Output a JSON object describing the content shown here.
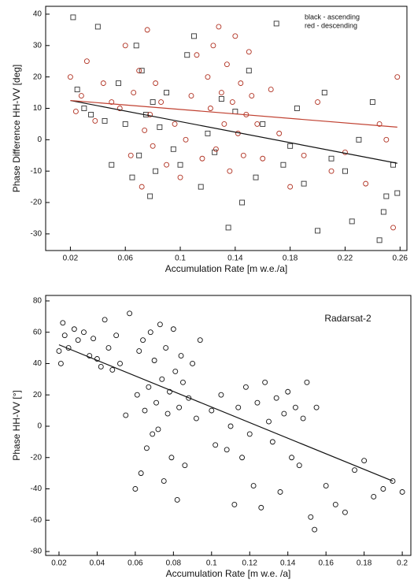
{
  "chart_data": [
    {
      "type": "scatter",
      "xlabel": "Accumulation Rate [m w.e./a]",
      "ylabel": "Phase Difference HH-VV [deg]",
      "xlim": [
        0.002,
        0.265
      ],
      "ylim": [
        -35.3,
        42.5
      ],
      "xticks": [
        0.02,
        0.06,
        0.1,
        0.14,
        0.18,
        0.22,
        0.26
      ],
      "yticks": [
        -30,
        -20,
        -10,
        0,
        10,
        20,
        30,
        40
      ],
      "legend": "upper right",
      "series": [
        {
          "name": "black - ascending",
          "color": "#333333",
          "marker": "square",
          "x": [
            0.022,
            0.025,
            0.03,
            0.035,
            0.04,
            0.045,
            0.05,
            0.055,
            0.06,
            0.065,
            0.068,
            0.07,
            0.072,
            0.075,
            0.078,
            0.08,
            0.082,
            0.085,
            0.09,
            0.095,
            0.1,
            0.105,
            0.11,
            0.115,
            0.12,
            0.125,
            0.13,
            0.135,
            0.14,
            0.145,
            0.15,
            0.155,
            0.16,
            0.17,
            0.175,
            0.18,
            0.185,
            0.19,
            0.2,
            0.205,
            0.21,
            0.22,
            0.225,
            0.23,
            0.24,
            0.245,
            0.248,
            0.25,
            0.255,
            0.258
          ],
          "values": [
            39,
            16,
            10,
            8,
            36,
            6,
            -8,
            18,
            5,
            -12,
            30,
            -5,
            22,
            8,
            -18,
            12,
            -10,
            4,
            15,
            -3,
            -8,
            27,
            33,
            -15,
            2,
            -4,
            13,
            -28,
            9,
            -20,
            22,
            -12,
            5,
            37,
            -8,
            -2,
            10,
            -14,
            -29,
            15,
            -6,
            -10,
            -26,
            0,
            12,
            -32,
            -23,
            -18,
            -8,
            -17
          ]
        },
        {
          "name": "red - descending",
          "color": "#b03020",
          "marker": "circle",
          "x": [
            0.02,
            0.024,
            0.028,
            0.032,
            0.038,
            0.044,
            0.05,
            0.056,
            0.06,
            0.064,
            0.066,
            0.07,
            0.072,
            0.074,
            0.076,
            0.078,
            0.08,
            0.082,
            0.086,
            0.09,
            0.096,
            0.1,
            0.104,
            0.108,
            0.112,
            0.116,
            0.12,
            0.122,
            0.124,
            0.126,
            0.128,
            0.13,
            0.132,
            0.134,
            0.136,
            0.138,
            0.14,
            0.142,
            0.144,
            0.146,
            0.148,
            0.15,
            0.152,
            0.156,
            0.16,
            0.166,
            0.172,
            0.18,
            0.19,
            0.2,
            0.21,
            0.22,
            0.235,
            0.245,
            0.25,
            0.255,
            0.258
          ],
          "values": [
            20,
            9,
            14,
            25,
            6,
            18,
            12,
            10,
            30,
            -5,
            15,
            22,
            -15,
            3,
            35,
            8,
            -2,
            18,
            12,
            -8,
            5,
            -12,
            0,
            14,
            27,
            -6,
            20,
            10,
            30,
            -3,
            36,
            15,
            5,
            24,
            -10,
            12,
            33,
            2,
            18,
            -5,
            8,
            28,
            14,
            5,
            -6,
            16,
            2,
            -15,
            -5,
            12,
            -10,
            -4,
            -14,
            5,
            0,
            -28,
            20
          ]
        }
      ],
      "fits": [
        {
          "color": "#111111",
          "x": [
            0.02,
            0.258
          ],
          "values": [
            12.5,
            -7.5
          ]
        },
        {
          "color": "#c04030",
          "x": [
            0.02,
            0.258
          ],
          "values": [
            12.5,
            4
          ]
        }
      ]
    },
    {
      "type": "scatter",
      "xlabel": "Accumulation Rate [m w.e. /a]",
      "ylabel": "Phase HH-VV [°]",
      "annotation": "Radarsat-2",
      "xlim": [
        0.013,
        0.2045
      ],
      "ylim": [
        -82.5,
        83.5
      ],
      "xticks": [
        0.02,
        0.04,
        0.06,
        0.08,
        0.1,
        0.12,
        0.14,
        0.16,
        0.18,
        0.2
      ],
      "yticks": [
        -80,
        -60,
        -40,
        -20,
        0,
        20,
        40,
        60,
        80
      ],
      "series": [
        {
          "color": "#111111",
          "marker": "circle",
          "x": [
            0.02,
            0.021,
            0.022,
            0.023,
            0.025,
            0.028,
            0.03,
            0.033,
            0.036,
            0.038,
            0.04,
            0.042,
            0.044,
            0.046,
            0.048,
            0.05,
            0.052,
            0.055,
            0.057,
            0.06,
            0.061,
            0.062,
            0.063,
            0.064,
            0.065,
            0.066,
            0.067,
            0.068,
            0.069,
            0.07,
            0.071,
            0.072,
            0.073,
            0.074,
            0.075,
            0.076,
            0.077,
            0.078,
            0.079,
            0.08,
            0.081,
            0.082,
            0.083,
            0.084,
            0.085,
            0.086,
            0.088,
            0.09,
            0.092,
            0.094,
            0.1,
            0.102,
            0.105,
            0.108,
            0.11,
            0.112,
            0.114,
            0.116,
            0.118,
            0.12,
            0.122,
            0.124,
            0.126,
            0.128,
            0.13,
            0.132,
            0.134,
            0.136,
            0.138,
            0.14,
            0.142,
            0.144,
            0.146,
            0.148,
            0.15,
            0.152,
            0.154,
            0.155,
            0.16,
            0.165,
            0.17,
            0.175,
            0.18,
            0.185,
            0.19,
            0.195,
            0.2
          ],
          "values": [
            48,
            40,
            66,
            58,
            50,
            62,
            55,
            60,
            45,
            56,
            43,
            38,
            68,
            50,
            36,
            58,
            40,
            7,
            72,
            -40,
            20,
            48,
            -30,
            55,
            10,
            -14,
            25,
            60,
            -5,
            42,
            15,
            -2,
            65,
            30,
            -35,
            50,
            8,
            22,
            -20,
            62,
            35,
            -47,
            12,
            45,
            28,
            -25,
            18,
            40,
            5,
            55,
            10,
            -12,
            20,
            -15,
            0,
            -50,
            12,
            -20,
            25,
            -5,
            -38,
            15,
            -52,
            28,
            3,
            -10,
            18,
            -42,
            8,
            22,
            -20,
            12,
            -25,
            5,
            28,
            -58,
            -66,
            12,
            -38,
            -50,
            -55,
            -28,
            -22,
            -45,
            -40,
            -35,
            -42
          ]
        }
      ],
      "fits": [
        {
          "color": "#111111",
          "x": [
            0.02,
            0.195
          ],
          "values": [
            52,
            -35
          ]
        }
      ]
    }
  ]
}
